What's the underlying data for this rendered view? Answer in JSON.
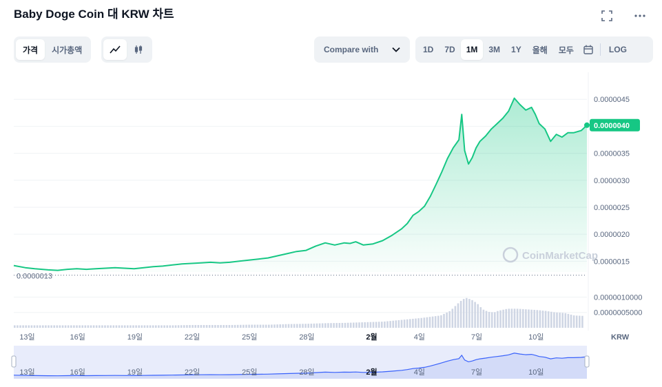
{
  "header": {
    "title": "Baby Doge Coin 대 KRW 차트",
    "fullscreen_icon": "fullscreen-icon",
    "more_icon": "more-horizontal-icon"
  },
  "toolbar": {
    "type_tabs": [
      "가격",
      "시가총액"
    ],
    "type_active": 0,
    "view_icons": [
      "line-chart-icon",
      "candlestick-icon"
    ],
    "compare_label": "Compare with",
    "ranges": [
      "1D",
      "7D",
      "1M",
      "3M",
      "1Y",
      "올해",
      "모두"
    ],
    "range_active": "1M",
    "calendar_icon": "calendar-icon",
    "log_label": "LOG"
  },
  "colors": {
    "line": "#16c784",
    "fill_top": "#16c784",
    "volume": "#cfd6e4",
    "navigator_bg": "#e8ecfb",
    "navigator_line": "#3861fb",
    "text": "#58667e"
  },
  "watermark": "CoinMarketCap",
  "chart_data": {
    "type": "area",
    "currency_label": "KRW",
    "current_price_label": "0.0000040",
    "start_price_label": "0.0000013",
    "y_ticks": [
      "0.0000045",
      "0.0000040",
      "0.0000035",
      "0.0000030",
      "0.0000025",
      "0.0000020",
      "0.0000015"
    ],
    "y_tick_values": [
      4.5,
      4.0,
      3.5,
      3.0,
      2.5,
      2.0,
      1.5
    ],
    "y_unit_note": "values in 1e-6 KRW",
    "ylim": [
      1.3,
      5.0
    ],
    "volume_ticks": [
      "0.0000010000",
      "0.0000005000"
    ],
    "volume_tick_values": [
      1.0,
      0.5
    ],
    "volume_ylim": [
      0,
      1.3
    ],
    "x_ticks": [
      "13일",
      "16일",
      "19일",
      "22일",
      "25일",
      "28일",
      "2월",
      "4일",
      "7일",
      "10일"
    ],
    "x_tick_positions": [
      0,
      3,
      6,
      9,
      12,
      15,
      18.5,
      21,
      24,
      27
    ],
    "xlim": [
      -0.3,
      29.7
    ],
    "series": [
      {
        "x": [
          -0.3,
          0.3,
          0.8,
          1.5,
          2,
          2.5,
          3,
          3.5,
          4,
          4.5,
          5,
          5.5,
          6,
          6.5,
          7,
          7.5,
          8,
          8.5,
          9,
          9.5,
          10,
          10.5,
          11,
          11.5,
          12,
          12.5,
          13,
          13.5,
          14,
          14.5,
          15,
          15.5,
          16,
          16.5,
          17,
          17.3,
          17.6,
          18,
          18.5,
          19,
          19.5,
          20,
          20.3,
          20.6,
          20.9,
          21.2,
          21.5,
          21.8,
          22.1,
          22.4,
          22.7,
          23,
          23.15,
          23.3,
          23.5,
          23.7,
          23.9,
          24.1,
          24.4,
          24.7,
          25,
          25.3,
          25.6,
          25.9,
          26.2,
          26.5,
          26.8,
          27,
          27.2,
          27.5,
          27.8,
          28.1,
          28.4,
          28.7,
          29.0,
          29.4,
          29.7
        ],
        "values": [
          1.42,
          1.38,
          1.36,
          1.34,
          1.33,
          1.35,
          1.36,
          1.35,
          1.36,
          1.37,
          1.38,
          1.37,
          1.36,
          1.38,
          1.4,
          1.41,
          1.43,
          1.45,
          1.46,
          1.47,
          1.48,
          1.47,
          1.48,
          1.5,
          1.52,
          1.54,
          1.56,
          1.6,
          1.64,
          1.68,
          1.7,
          1.78,
          1.84,
          1.8,
          1.84,
          1.83,
          1.86,
          1.8,
          1.82,
          1.88,
          1.98,
          2.1,
          2.2,
          2.35,
          2.42,
          2.52,
          2.7,
          2.92,
          3.15,
          3.4,
          3.6,
          3.75,
          4.22,
          3.55,
          3.3,
          3.42,
          3.6,
          3.72,
          3.82,
          3.95,
          4.05,
          4.15,
          4.28,
          4.52,
          4.4,
          4.3,
          4.35,
          4.22,
          4.05,
          3.95,
          3.72,
          3.85,
          3.8,
          3.88,
          3.88,
          3.92,
          4.02
        ]
      }
    ],
    "volume": {
      "x": [
        -0.3,
        0.5,
        1,
        2,
        3,
        4,
        5,
        6,
        7,
        8,
        9,
        10,
        11,
        12,
        13,
        14,
        15,
        16,
        17,
        18,
        19,
        20,
        21,
        22,
        22.5,
        23,
        23.3,
        23.6,
        23.9,
        24.2,
        24.5,
        24.8,
        25,
        25.5,
        26,
        26.5,
        27,
        27.5,
        28,
        28.5,
        29,
        29.7
      ],
      "values": [
        0.08,
        0.08,
        0.08,
        0.08,
        0.08,
        0.08,
        0.08,
        0.08,
        0.08,
        0.08,
        0.09,
        0.09,
        0.09,
        0.1,
        0.1,
        0.12,
        0.13,
        0.15,
        0.16,
        0.18,
        0.2,
        0.26,
        0.32,
        0.4,
        0.55,
        0.85,
        0.98,
        0.92,
        0.8,
        0.6,
        0.52,
        0.5,
        0.55,
        0.62,
        0.62,
        0.6,
        0.58,
        0.55,
        0.5,
        0.48,
        0.4,
        0.38
      ]
    }
  }
}
